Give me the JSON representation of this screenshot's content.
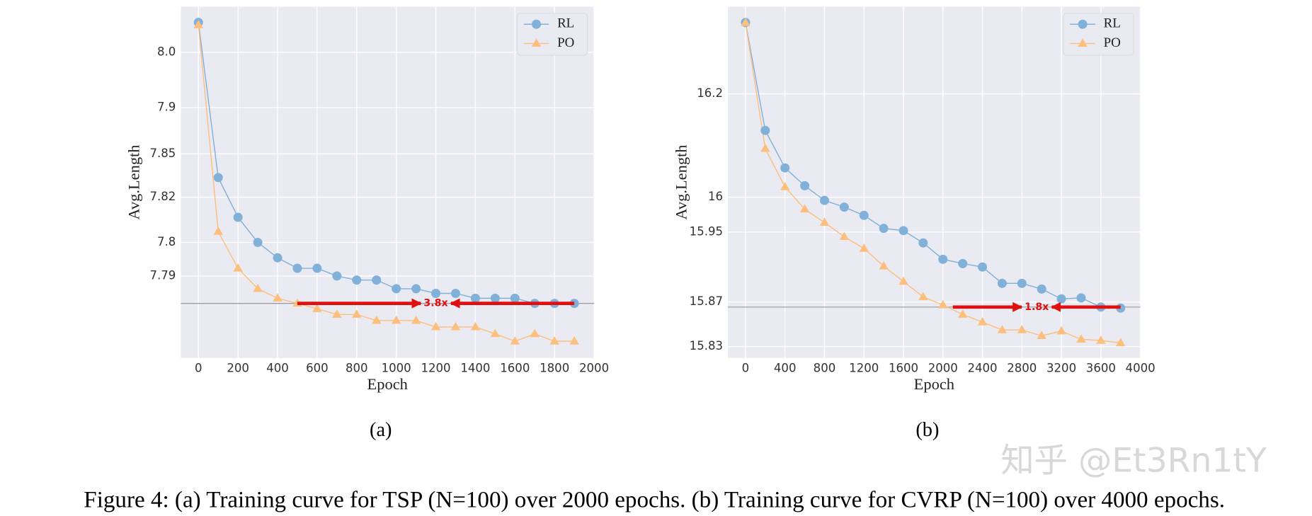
{
  "chart_data": [
    {
      "type": "line",
      "label": "(a)",
      "xlabel": "Epoch",
      "ylabel": "Avg.Length",
      "x": [
        0,
        100,
        200,
        300,
        400,
        500,
        600,
        700,
        800,
        900,
        1000,
        1100,
        1200,
        1300,
        1400,
        1500,
        1600,
        1700,
        1800,
        1900
      ],
      "series": [
        {
          "name": "RL",
          "color": "#81b1d9",
          "marker": "circle",
          "values": [
            8.082,
            7.832,
            7.81,
            7.8,
            7.795,
            7.792,
            7.792,
            7.79,
            7.789,
            7.789,
            7.787,
            7.787,
            7.786,
            7.786,
            7.785,
            7.785,
            7.785,
            7.784,
            7.784,
            7.784
          ]
        },
        {
          "name": "PO",
          "color": "#fdbf7e",
          "marker": "triangle",
          "values": [
            8.074,
            7.804,
            7.792,
            7.787,
            7.785,
            7.784,
            7.783,
            7.782,
            7.782,
            7.781,
            7.781,
            7.781,
            7.78,
            7.78,
            7.78,
            7.779,
            7.778,
            7.779,
            7.778,
            7.778
          ]
        }
      ],
      "xlim": [
        -89,
        2000
      ],
      "xticks": [
        0,
        200,
        400,
        600,
        800,
        1000,
        1200,
        1400,
        1600,
        1800,
        2000
      ],
      "ylim": [
        7.776,
        8.136
      ],
      "yticks": [
        {
          "value": 8.0,
          "label": "8.0"
        },
        7.9,
        7.85,
        7.82,
        7.8,
        7.79
      ],
      "yscale": "log",
      "yscale_offset": 7.765,
      "grid": true,
      "legend": "upper right",
      "reference_line": 7.784,
      "annotation": {
        "text": "3.8x",
        "x": [
          500,
          1900
        ],
        "y": 7.784,
        "color": "#e01010"
      }
    },
    {
      "type": "line",
      "label": "(b)",
      "xlabel": "Epoch",
      "ylabel": "Avg.Length",
      "x": [
        0,
        200,
        400,
        600,
        800,
        1000,
        1200,
        1400,
        1600,
        1800,
        2000,
        2200,
        2400,
        2600,
        2800,
        3000,
        3200,
        3400,
        3600,
        3800
      ],
      "series": [
        {
          "name": "RL",
          "color": "#81b1d9",
          "marker": "circle",
          "values": [
            16.4,
            16.119,
            16.048,
            16.018,
            15.995,
            15.985,
            15.973,
            15.955,
            15.952,
            15.936,
            15.916,
            15.911,
            15.907,
            15.889,
            15.889,
            15.883,
            15.873,
            15.874,
            15.865,
            15.864
          ]
        },
        {
          "name": "PO",
          "color": "#fdbf7e",
          "marker": "triangle",
          "values": [
            16.399,
            16.083,
            16.016,
            15.982,
            15.963,
            15.944,
            15.929,
            15.908,
            15.891,
            15.875,
            15.867,
            15.858,
            15.851,
            15.844,
            15.844,
            15.839,
            15.843,
            15.836,
            15.835,
            15.833
          ]
        }
      ],
      "xlim": [
        -178,
        4000
      ],
      "xticks": [
        0,
        400,
        800,
        1200,
        1600,
        2000,
        2400,
        2800,
        3200,
        3600,
        4000
      ],
      "ylim": [
        15.821,
        16.453
      ],
      "yticks": [
        16.2,
        16,
        15.95,
        15.87,
        15.83
      ],
      "yscale": "log",
      "yscale_offset": 15.64,
      "grid": true,
      "legend": "upper right",
      "reference_line": 15.865,
      "annotation": {
        "text": "1.8x",
        "x": [
          2100,
          3800
        ],
        "y": 15.865,
        "color": "#e01010"
      }
    }
  ],
  "figure_caption": "Figure 4: (a) Training curve for TSP (N=100) over 2000 epochs. (b) Training curve for CVRP (N=100) over 4000 epochs.",
  "watermark": "知乎 @Et3Rn1tY"
}
